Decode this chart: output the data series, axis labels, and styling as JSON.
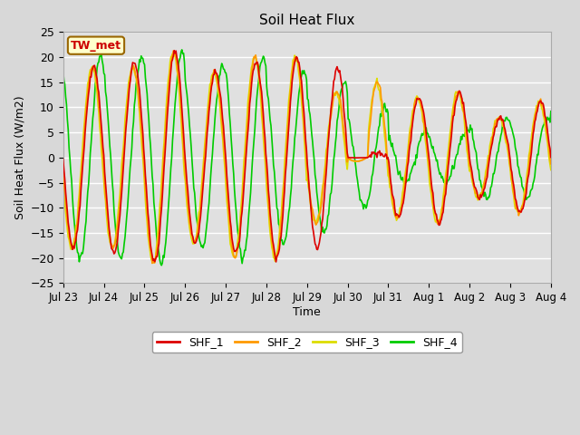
{
  "title": "Soil Heat Flux",
  "xlabel": "Time",
  "ylabel": "Soil Heat Flux (W/m2)",
  "ylim": [
    -25,
    25
  ],
  "yticks": [
    -25,
    -20,
    -15,
    -10,
    -5,
    0,
    5,
    10,
    15,
    20,
    25
  ],
  "xtick_labels": [
    "Jul 23",
    "Jul 24",
    "Jul 25",
    "Jul 26",
    "Jul 27",
    "Jul 28",
    "Jul 29",
    "Jul 30",
    "Jul 31",
    "Aug 1",
    "Aug 2",
    "Aug 3",
    "Aug 4"
  ],
  "annotation_text": "TW_met",
  "annotation_color": "#cc0000",
  "annotation_bg": "#ffffcc",
  "annotation_border": "#996600",
  "colors": {
    "SHF_1": "#dd0000",
    "SHF_2": "#ff9900",
    "SHF_3": "#dddd00",
    "SHF_4": "#00cc00"
  },
  "background_color": "#e0e0e0",
  "plot_bg": "#e0e0e0",
  "grid_color": "#ffffff",
  "fig_bg": "#d8d8d8"
}
